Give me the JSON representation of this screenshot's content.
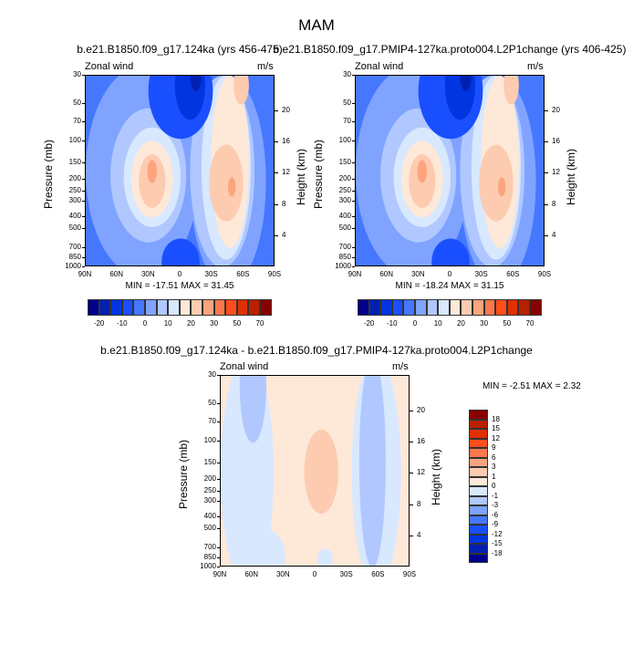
{
  "title": "MAM",
  "palette": [
    "#00008b",
    "#0020b0",
    "#0035e0",
    "#1a4fff",
    "#4577ff",
    "#7fa3ff",
    "#b0c8ff",
    "#d8e8ff",
    "#fee8d8",
    "#fdcbb0",
    "#fca47e",
    "#fb784d",
    "#ff4e1e",
    "#e03000",
    "#b82000",
    "#880000"
  ],
  "chart_data": [
    {
      "type": "heatmap",
      "title": "b.e21.B1850.f09_g17.124ka (yrs 456-475)",
      "left_label": "Zonal wind",
      "right_label": "m/s",
      "ylabel": "Pressure (mb)",
      "ylabel_right": "Height (km)",
      "pressure_ticks": [
        30,
        50,
        70,
        100,
        150,
        200,
        250,
        300,
        400,
        500,
        700,
        850,
        1000
      ],
      "height_ticks": [
        4,
        8,
        12,
        16,
        20
      ],
      "lat_ticks": [
        "90N",
        "60N",
        "30N",
        "0",
        "30S",
        "60S",
        "90S"
      ],
      "min_max": "MIN = -17.51  MAX =  31.45",
      "colorbar_labels": [
        "-20",
        "-10",
        "0",
        "10",
        "20",
        "30",
        "50",
        "70"
      ]
    },
    {
      "type": "heatmap",
      "title": "b.e21.B1850.f09_g17.PMIP4-127ka.proto004.L2P1change (yrs 406-425)",
      "left_label": "Zonal wind",
      "right_label": "m/s",
      "ylabel": "Pressure (mb)",
      "ylabel_right": "Height (km)",
      "pressure_ticks": [
        30,
        50,
        70,
        100,
        150,
        200,
        250,
        300,
        400,
        500,
        700,
        850,
        1000
      ],
      "height_ticks": [
        4,
        8,
        12,
        16,
        20
      ],
      "lat_ticks": [
        "90N",
        "60N",
        "30N",
        "0",
        "30S",
        "60S",
        "90S"
      ],
      "min_max": "MIN = -18.24  MAX =  31.15",
      "colorbar_labels": [
        "-20",
        "-10",
        "0",
        "10",
        "20",
        "30",
        "50",
        "70"
      ]
    },
    {
      "type": "heatmap",
      "title": "b.e21.B1850.f09_g17.124ka - b.e21.B1850.f09_g17.PMIP4-127ka.proto004.L2P1change",
      "left_label": "Zonal wind",
      "right_label": "m/s",
      "ylabel": "Pressure (mb)",
      "ylabel_right": "Height (km)",
      "pressure_ticks": [
        30,
        50,
        70,
        100,
        150,
        200,
        250,
        300,
        400,
        500,
        700,
        850,
        1000
      ],
      "height_ticks": [
        4,
        8,
        12,
        16,
        20
      ],
      "lat_ticks": [
        "90N",
        "60N",
        "30N",
        "0",
        "30S",
        "60S",
        "90S"
      ],
      "min_max": "MIN =  -2.51  MAX =   2.32",
      "colorbar_labels": [
        "18",
        "15",
        "12",
        "9",
        "6",
        "3",
        "1",
        "0",
        "-1",
        "-3",
        "-6",
        "-9",
        "-12",
        "-15",
        "-18"
      ]
    }
  ]
}
